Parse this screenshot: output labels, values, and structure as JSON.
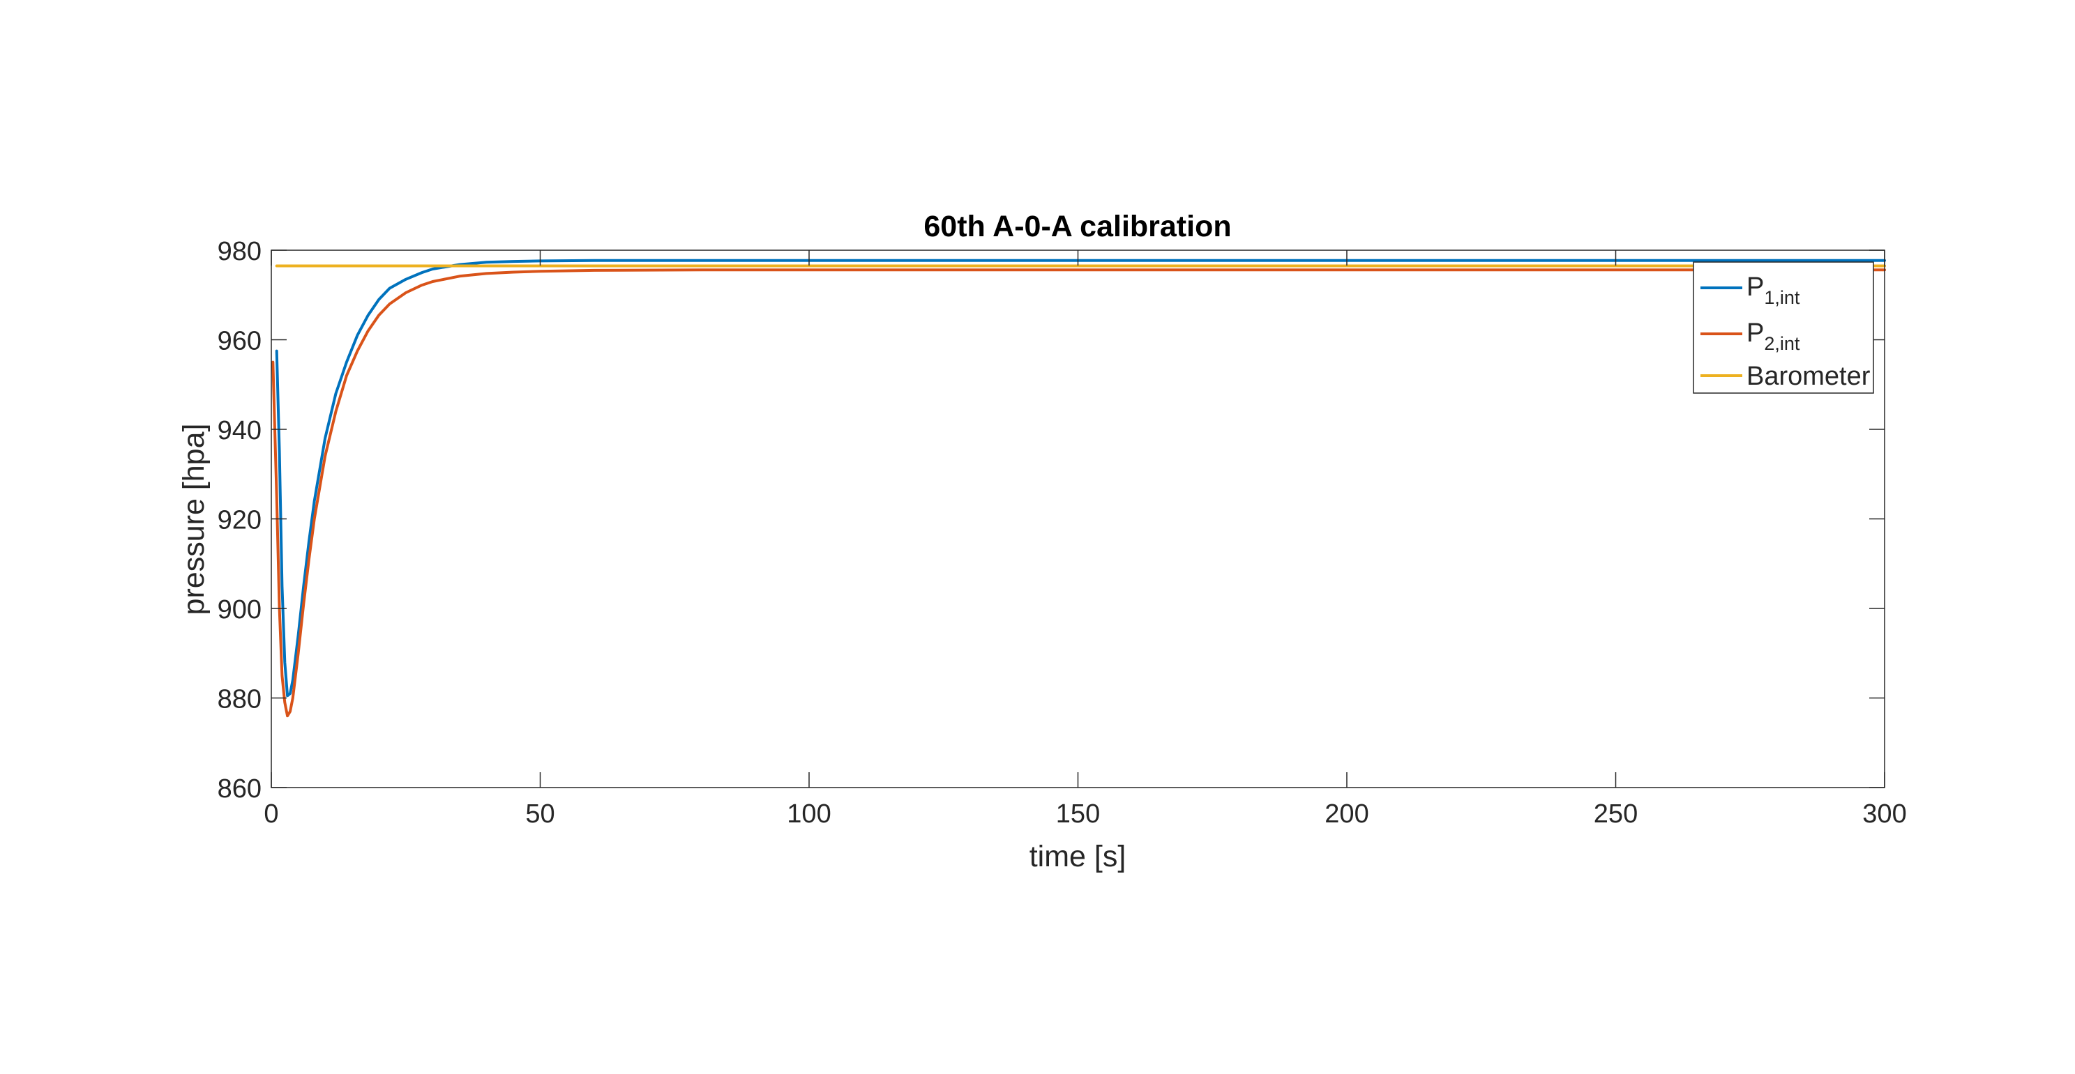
{
  "chart_data": {
    "type": "line",
    "title": "60th A-0-A calibration",
    "xlabel": "time [s]",
    "ylabel": "pressure [hpa]",
    "xlim": [
      0,
      300
    ],
    "ylim": [
      860,
      980
    ],
    "x_ticks": [
      0,
      50,
      100,
      150,
      200,
      250,
      300
    ],
    "y_ticks": [
      860,
      880,
      900,
      920,
      940,
      960,
      980
    ],
    "grid": false,
    "legend_position": "top-right",
    "series": [
      {
        "name_base": "P",
        "name_sub": "1,int",
        "color": "#0072BD",
        "x": [
          1,
          1.5,
          2,
          2.5,
          3,
          3.5,
          4,
          5,
          6,
          7,
          8,
          10,
          12,
          14,
          16,
          18,
          20,
          22,
          25,
          28,
          30,
          35,
          40,
          45,
          50,
          60,
          80,
          100,
          150,
          200,
          250,
          300
        ],
        "y": [
          957.5,
          935,
          905,
          888,
          880.5,
          881,
          884,
          894,
          905,
          915,
          924,
          938,
          948,
          955,
          961,
          965.5,
          969,
          971.5,
          973.5,
          975,
          975.8,
          976.8,
          977.3,
          977.5,
          977.6,
          977.7,
          977.7,
          977.7,
          977.7,
          977.7,
          977.7,
          977.7
        ]
      },
      {
        "name_base": "P",
        "name_sub": "2,int",
        "color": "#D95319",
        "x": [
          0.3,
          1,
          1.5,
          2,
          2.5,
          3,
          3.5,
          4,
          5,
          6,
          7,
          8,
          10,
          12,
          14,
          16,
          18,
          20,
          22,
          25,
          28,
          30,
          35,
          40,
          45,
          50,
          60,
          80,
          100,
          150,
          200,
          250,
          300
        ],
        "y": [
          955,
          925,
          900,
          885,
          879,
          876,
          877,
          880,
          890,
          901,
          911,
          920,
          934,
          944,
          952,
          957.5,
          962,
          965.5,
          968,
          970.5,
          972.2,
          973,
          974.2,
          974.8,
          975.1,
          975.3,
          975.5,
          975.6,
          975.6,
          975.6,
          975.6,
          975.6,
          975.6
        ]
      },
      {
        "name": "Barometer",
        "color": "#EDB120",
        "x": [
          1,
          300
        ],
        "y": [
          976.5,
          976.5
        ]
      }
    ]
  }
}
